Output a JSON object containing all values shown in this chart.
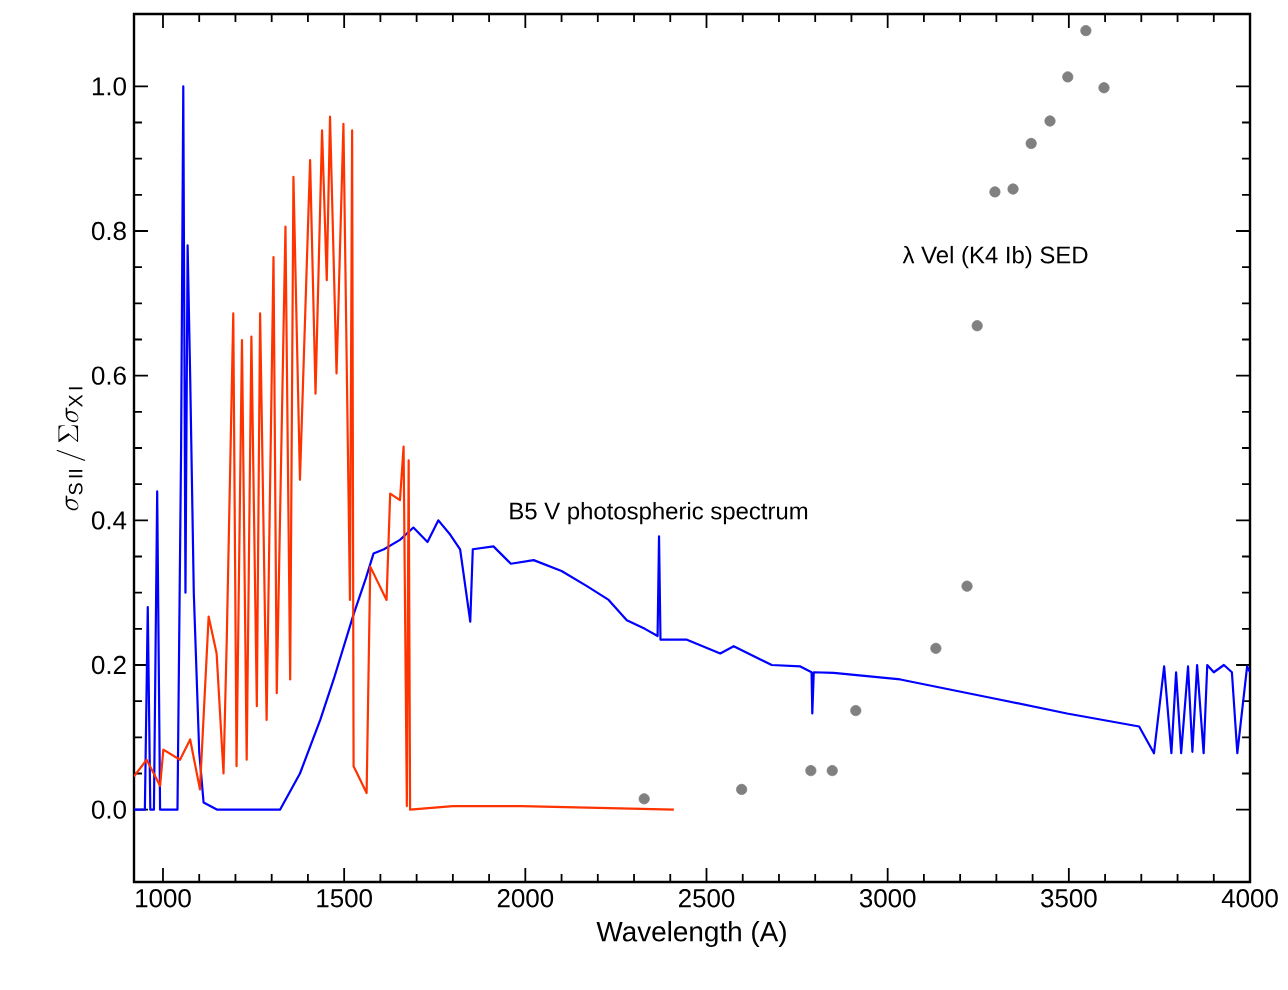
{
  "chart_data": {
    "type": "line",
    "xlabel": "Wavelength (A)",
    "ylabel": "\\sigma_{\\mathrm{S\\,II}}\\,/\\,\\Sigma\\sigma_{\\mathrm{X\\,I}}",
    "xlim": [
      920,
      4000
    ],
    "ylim": [
      -0.1,
      1.1
    ],
    "xticks": [
      1000,
      1500,
      2000,
      2500,
      3000,
      3500,
      4000
    ],
    "yticks": [
      {
        "value": 0,
        "label": "0.0"
      },
      {
        "value": 0.2,
        "label": "0.2"
      },
      {
        "value": 0.4,
        "label": "0.4"
      },
      {
        "value": 0.6,
        "label": "0.6"
      },
      {
        "value": 0.8,
        "label": "0.8"
      },
      {
        "value": 1.0,
        "label": "1.0"
      }
    ],
    "grid": false,
    "legend": false,
    "series": [
      {
        "name": "B5 V photospheric spectrum",
        "color": "#0000ff",
        "x": [
          920,
          950,
          958,
          965,
          975,
          984,
          992,
          1005,
          1019,
          1040,
          1050,
          1056,
          1062,
          1068,
          1075,
          1085,
          1100,
          1112,
          1150,
          1250,
          1323,
          1378,
          1434,
          1471,
          1526,
          1560,
          1581,
          1610,
          1654,
          1691,
          1730,
          1760,
          1793,
          1820,
          1848,
          1855,
          1912,
          1960,
          2023,
          2100,
          2170,
          2230,
          2280,
          2330,
          2365,
          2369,
          2373,
          2446,
          2538,
          2575,
          2680,
          2759,
          2790,
          2792,
          2796,
          2851,
          3035,
          3311,
          3495,
          3694,
          3735,
          3763,
          3783,
          3796,
          3810,
          3829,
          3841,
          3854,
          3872,
          3882,
          3900,
          3928,
          3950,
          3965,
          3992,
          4000
        ],
        "values": [
          0.0,
          0.0,
          0.28,
          0.0,
          0.0,
          0.44,
          0.0,
          0.0,
          0.0,
          0.0,
          0.5,
          1.0,
          0.3,
          0.78,
          0.6,
          0.3,
          0.08,
          0.01,
          0.0,
          0.0,
          0.0,
          0.05,
          0.124,
          0.18,
          0.27,
          0.32,
          0.354,
          0.36,
          0.373,
          0.39,
          0.37,
          0.4,
          0.38,
          0.36,
          0.26,
          0.36,
          0.364,
          0.34,
          0.345,
          0.33,
          0.309,
          0.29,
          0.262,
          0.25,
          0.24,
          0.378,
          0.235,
          0.235,
          0.216,
          0.226,
          0.2,
          0.198,
          0.19,
          0.133,
          0.19,
          0.189,
          0.18,
          0.152,
          0.133,
          0.115,
          0.078,
          0.198,
          0.078,
          0.19,
          0.078,
          0.198,
          0.08,
          0.2,
          0.078,
          0.2,
          0.19,
          0.2,
          0.19,
          0.078,
          0.198,
          0.19
        ]
      },
      {
        "color": "#ff3300",
        "x": [
          920,
          955,
          992,
          1001,
          1047,
          1075,
          1102,
          1126,
          1148,
          1167,
          1176,
          1194,
          1203,
          1218,
          1231,
          1244,
          1259,
          1268,
          1286,
          1305,
          1314,
          1338,
          1351,
          1360,
          1378,
          1406,
          1421,
          1439,
          1452,
          1461,
          1479,
          1498,
          1516,
          1522,
          1526,
          1562,
          1572,
          1617,
          1627,
          1654,
          1664,
          1673,
          1678,
          1682,
          1800,
          1990,
          2410
        ],
        "values": [
          0.046,
          0.069,
          0.033,
          0.083,
          0.069,
          0.097,
          0.028,
          0.267,
          0.216,
          0.05,
          0.235,
          0.686,
          0.06,
          0.649,
          0.069,
          0.654,
          0.143,
          0.686,
          0.124,
          0.764,
          0.161,
          0.806,
          0.18,
          0.875,
          0.456,
          0.898,
          0.575,
          0.939,
          0.732,
          0.958,
          0.603,
          0.948,
          0.29,
          0.939,
          0.06,
          0.023,
          0.336,
          0.29,
          0.437,
          0.428,
          0.502,
          0.005,
          0.483,
          0.0,
          0.005,
          0.005,
          0.0
        ]
      },
      {
        "name": "λ Vel (K4 Ib) SED",
        "color": "#808080",
        "type": "scatter",
        "marker": "circle",
        "x": [
          2328,
          2597,
          2788,
          2847,
          2912,
          3133,
          3219,
          3247,
          3296,
          3346,
          3396,
          3448,
          3497,
          3547,
          3597
        ],
        "values": [
          0.015,
          0.028,
          0.054,
          0.054,
          0.137,
          0.223,
          0.309,
          0.669,
          0.854,
          0.858,
          0.921,
          0.952,
          1.013,
          1.077,
          0.998
        ]
      }
    ]
  }
}
